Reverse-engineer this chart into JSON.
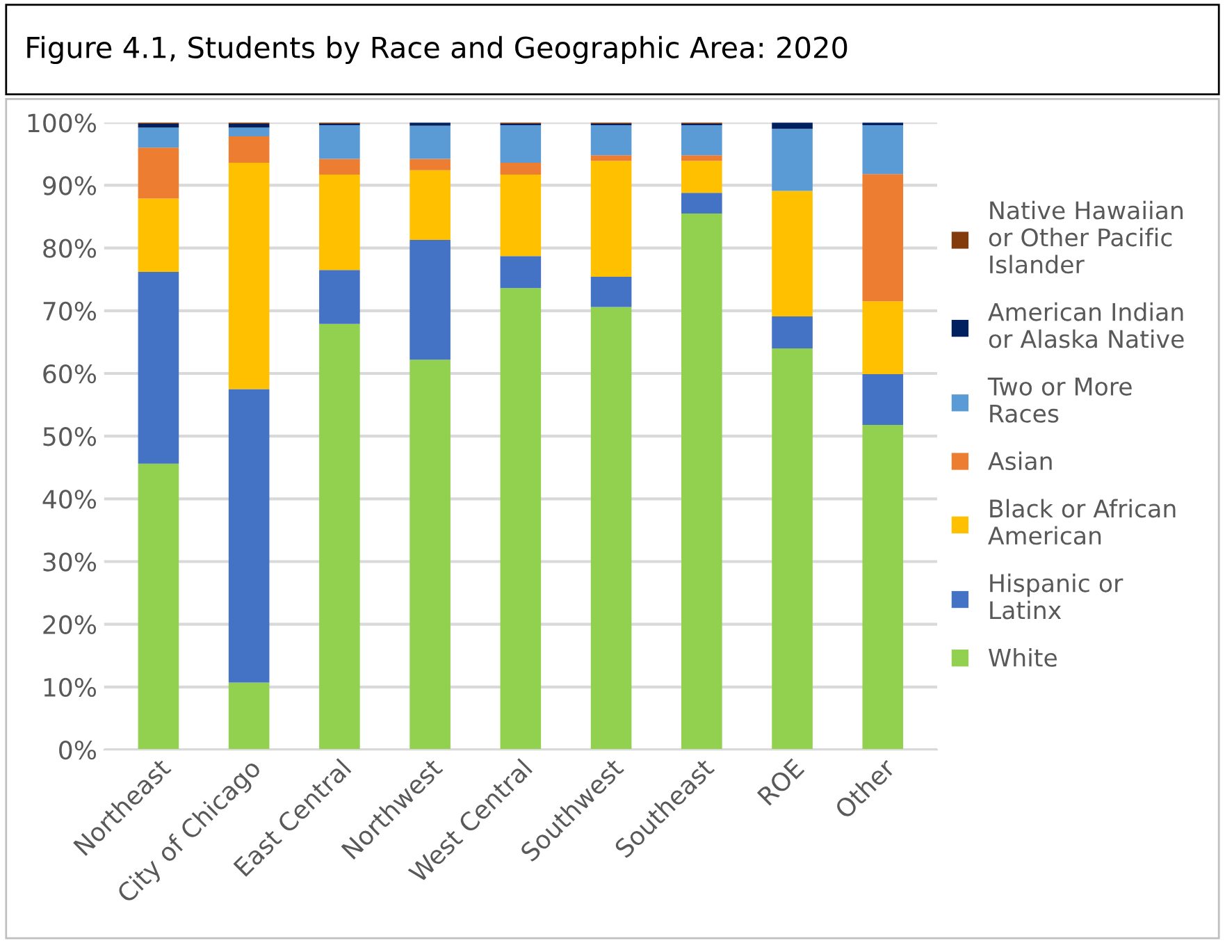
{
  "chart_data": {
    "type": "bar",
    "stacked": true,
    "title": "Figure 4.1, Students by Race and Geographic Area: 2020",
    "categories": [
      "Northeast",
      "City of Chicago",
      "East Central",
      "Northwest",
      "West Central",
      "Southwest",
      "Southeast",
      "ROE",
      "Other"
    ],
    "series": [
      {
        "name": "White",
        "color": "#92d050",
        "values": [
          45.6,
          10.7,
          67.9,
          62.2,
          73.6,
          70.6,
          85.5,
          64.0,
          51.8
        ]
      },
      {
        "name": "Hispanic or\nLatinx",
        "color": "#4472c4",
        "values": [
          30.6,
          46.8,
          8.6,
          19.1,
          5.1,
          4.8,
          3.3,
          5.1,
          8.1
        ]
      },
      {
        "name": "Black or African\nAmerican",
        "color": "#ffc000",
        "values": [
          11.7,
          36.1,
          15.2,
          11.1,
          13.0,
          18.5,
          5.1,
          20.0,
          11.6
        ]
      },
      {
        "name": "Asian",
        "color": "#ed7d31",
        "values": [
          8.1,
          4.2,
          2.5,
          1.8,
          1.9,
          0.9,
          0.9,
          0,
          20.3
        ]
      },
      {
        "name": "Two or More\nRaces",
        "color": "#5b9bd5",
        "values": [
          3.2,
          1.4,
          5.4,
          5.3,
          6.0,
          4.8,
          4.8,
          9.9,
          7.8
        ]
      },
      {
        "name": "American Indian\nor Alaska Native",
        "color": "#002060",
        "values": [
          0.6,
          0.6,
          0.2,
          0.5,
          0.2,
          0.2,
          0.2,
          1.0,
          0.4
        ]
      },
      {
        "name": "Native Hawaiian\nor Other Pacific\nIslander",
        "color": "#843c0c",
        "values": [
          0.2,
          0.2,
          0.2,
          0,
          0.2,
          0.2,
          0.2,
          0,
          0
        ]
      }
    ],
    "ylim": [
      0,
      100
    ],
    "yticks": [
      {
        "value": 0,
        "label": "0%"
      },
      {
        "value": 10,
        "label": "10%"
      },
      {
        "value": 20,
        "label": "20%"
      },
      {
        "value": 30,
        "label": "30%"
      },
      {
        "value": 40,
        "label": "40%"
      },
      {
        "value": 50,
        "label": "50%"
      },
      {
        "value": 60,
        "label": "60%"
      },
      {
        "value": 70,
        "label": "70%"
      },
      {
        "value": 80,
        "label": "80%"
      },
      {
        "value": 90,
        "label": "90%"
      },
      {
        "value": 100,
        "label": "100%"
      }
    ],
    "grid": "y",
    "legend": "right"
  }
}
